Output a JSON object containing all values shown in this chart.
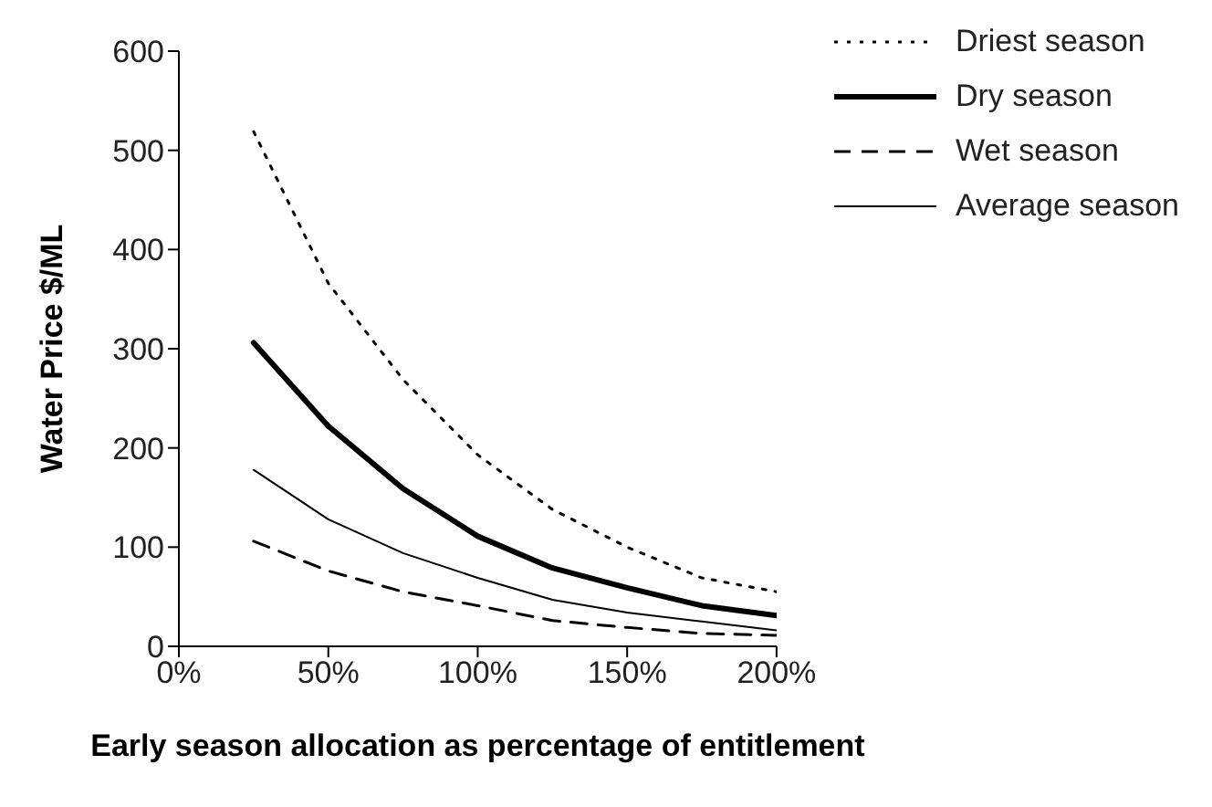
{
  "chart_data": {
    "type": "line",
    "xlabel": "Early season allocation as percentage of entitlement",
    "ylabel": "Water Price $/ML",
    "x": [
      25,
      50,
      75,
      100,
      125,
      150,
      175,
      200
    ],
    "xlim": [
      0,
      200
    ],
    "xticks": [
      {
        "value": 0,
        "label": "0%"
      },
      {
        "value": 50,
        "label": "50%"
      },
      {
        "value": 100,
        "label": "100%"
      },
      {
        "value": 150,
        "label": "150%"
      },
      {
        "value": 200,
        "label": "200%"
      }
    ],
    "ylim": [
      0,
      600
    ],
    "yticks": [
      0,
      100,
      200,
      300,
      400,
      500,
      600
    ],
    "legend": "top right",
    "grid": false,
    "marker": "none",
    "series": [
      {
        "name": "Driest season",
        "color": "#000000",
        "line_style": "dotted",
        "values": [
          519,
          366,
          269,
          193,
          138,
          100,
          69,
          55
        ]
      },
      {
        "name": "Dry season",
        "color": "#000000",
        "line_style": "solid",
        "values": [
          306,
          222,
          159,
          111,
          79,
          59,
          41,
          31
        ]
      },
      {
        "name": "Wet season",
        "color": "#000000",
        "line_style": "dashed",
        "values": [
          106,
          76,
          55,
          41,
          26,
          19,
          13,
          11
        ]
      },
      {
        "name": "Average season",
        "color": "#000000",
        "line_style": "solid",
        "values": [
          178,
          128,
          94,
          69,
          47,
          34,
          25,
          16
        ]
      }
    ]
  }
}
